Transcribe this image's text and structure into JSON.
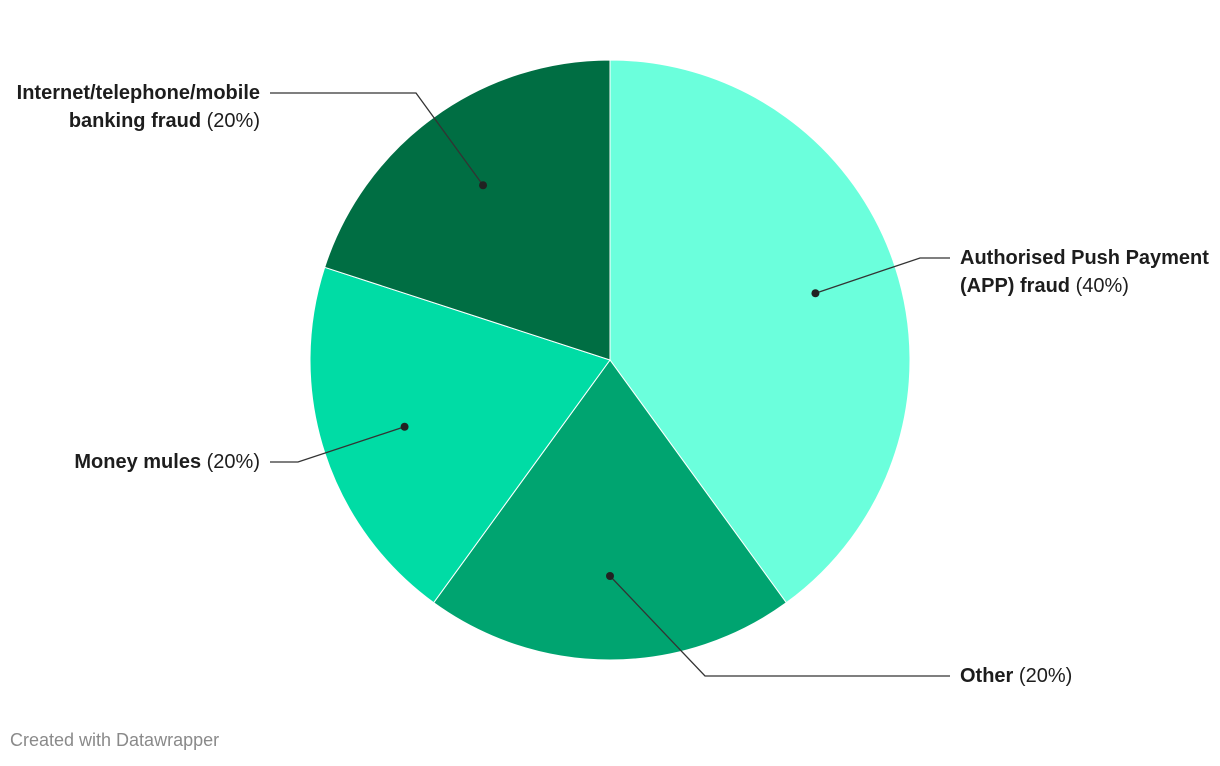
{
  "chart_data": {
    "type": "pie",
    "categories": [
      "Authorised Push Payment (APP) fraud",
      "Other",
      "Money mules",
      "Internet/telephone/mobile banking fraud"
    ],
    "values": [
      40,
      20,
      20,
      20
    ],
    "value_labels": [
      "(40%)",
      "(20%)",
      "(20%)",
      "(20%)"
    ],
    "colors": [
      "#6bffdc",
      "#00a470",
      "#00dca5",
      "#006e43"
    ],
    "credit": "Created with Datawrapper"
  }
}
